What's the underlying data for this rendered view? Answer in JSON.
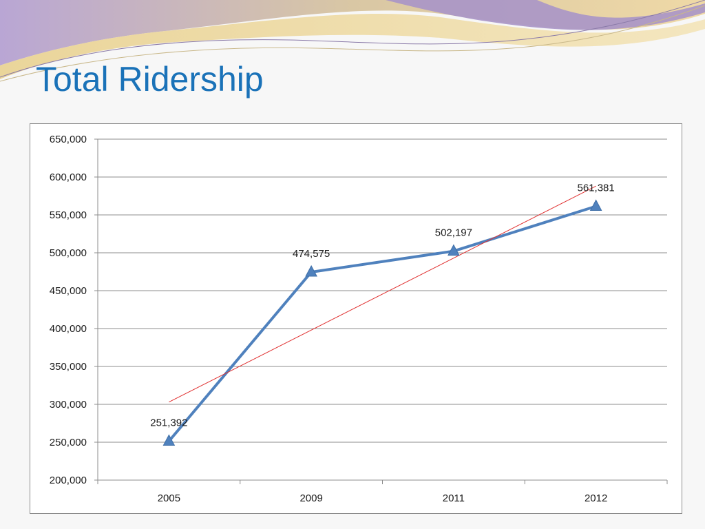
{
  "slide": {
    "title": "Total Ridership"
  },
  "colors": {
    "title": "#1a72b8",
    "series": "#4f81bd",
    "trendline": "#e03030",
    "grid": "#8c8c8c"
  },
  "chart_data": {
    "type": "line",
    "title": "",
    "xlabel": "",
    "ylabel": "",
    "categories": [
      "2005",
      "2009",
      "2011",
      "2012"
    ],
    "series": [
      {
        "values": [
          251392,
          474575,
          502197,
          561381
        ],
        "marker": "triangle",
        "data_labels": [
          "251,392",
          "474,575",
          "502,197",
          "561,381"
        ]
      }
    ],
    "trendline": {
      "type": "linear",
      "start": 303000,
      "end": 588000
    },
    "ylim": [
      200000,
      650000
    ],
    "ytick_values": [
      200000,
      250000,
      300000,
      350000,
      400000,
      450000,
      500000,
      550000,
      600000,
      650000
    ],
    "ytick_labels": [
      "200,000",
      "250,000",
      "300,000",
      "350,000",
      "400,000",
      "450,000",
      "500,000",
      "550,000",
      "600,000",
      "650,000"
    ],
    "grid": true,
    "legend": "none"
  }
}
